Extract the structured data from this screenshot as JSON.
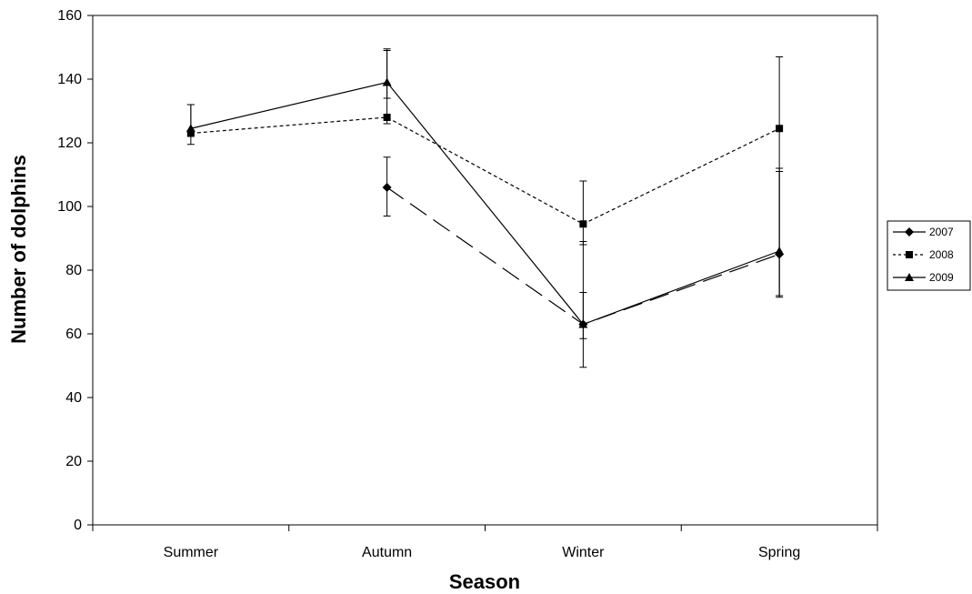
{
  "chart_data": {
    "type": "line",
    "title": "",
    "xlabel": "Season",
    "ylabel": "Number of dolphins",
    "categories": [
      "Summer",
      "Autumn",
      "Winter",
      "Spring"
    ],
    "ylim": [
      0,
      160
    ],
    "yticks": [
      0,
      20,
      40,
      60,
      80,
      100,
      120,
      140,
      160
    ],
    "grid": false,
    "legend_position": "right",
    "series": [
      {
        "name": "2007",
        "marker": "diamond",
        "line_style": "long-dash",
        "values": [
          null,
          106,
          63,
          85
        ],
        "err_low": [
          null,
          97,
          49.5,
          71.5
        ],
        "err_high": [
          null,
          115.5,
          73,
          111
        ]
      },
      {
        "name": "2008",
        "marker": "square",
        "line_style": "dotted",
        "values": [
          123,
          128,
          94.5,
          124.5
        ],
        "err_low": [
          119.5,
          126,
          88,
          72
        ],
        "err_high": [
          132,
          149,
          108,
          147
        ]
      },
      {
        "name": "2009",
        "marker": "triangle",
        "line_style": "solid",
        "values": [
          124.5,
          139,
          63,
          86
        ],
        "err_low": [
          124,
          134,
          58.5,
          72
        ],
        "err_high": [
          132,
          149.5,
          89,
          112
        ]
      }
    ]
  }
}
